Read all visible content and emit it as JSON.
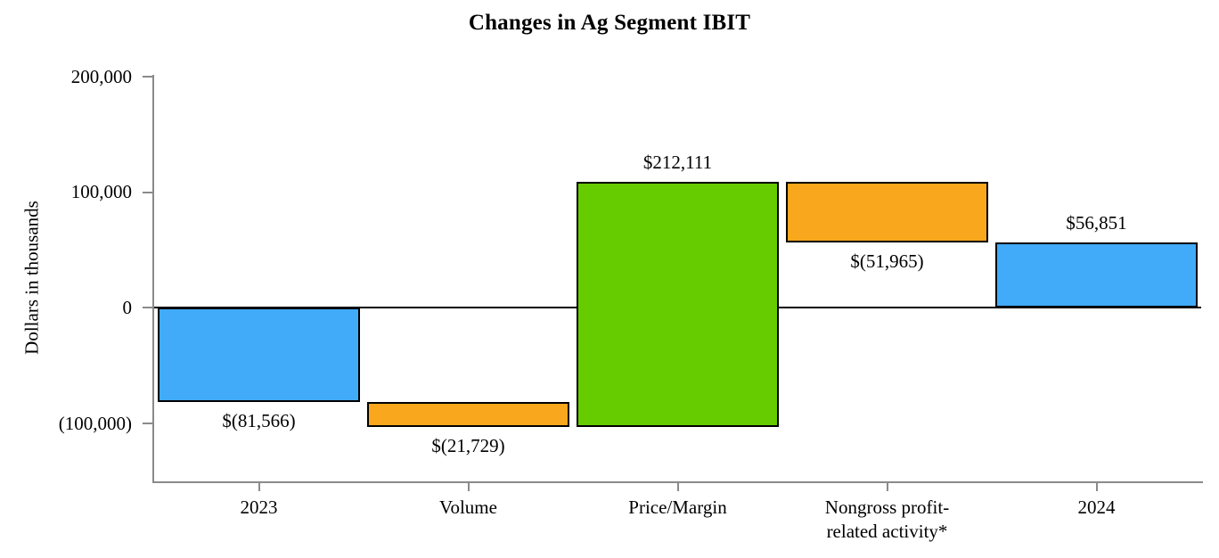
{
  "title": "Changes in Ag Segment IBIT",
  "chart_data": {
    "type": "bar",
    "subtype": "waterfall",
    "title": "Changes in Ag Segment IBIT",
    "xlabel": "",
    "ylabel": "Dollars in thousands",
    "units": "thousands of dollars",
    "ylim": [
      -150000,
      200000
    ],
    "grid": false,
    "legend": false,
    "yticks": [
      {
        "value": 200000,
        "label": "200,000"
      },
      {
        "value": 100000,
        "label": "100,000"
      },
      {
        "value": 0,
        "label": "0"
      },
      {
        "value": -100000,
        "label": "(100,000)"
      }
    ],
    "categories": [
      "2023",
      "Volume",
      "Price/Margin",
      "Nongross profit-\nrelated activity*",
      "2024"
    ],
    "palette": {
      "total": "#41ABF9",
      "negative_change": "#F9A71C",
      "positive_change": "#66CC00"
    },
    "axis_color": "#8a8a8a",
    "zero_line_color": "#000000",
    "bar_border_color": "#000000",
    "bars": [
      {
        "category": "2023",
        "value": -81566,
        "start": 0,
        "end": -81566,
        "label": "$(81,566)",
        "color_key": "total",
        "label_position": "below"
      },
      {
        "category": "Volume",
        "value": -21729,
        "start": -81566,
        "end": -103295,
        "label": "$(21,729)",
        "color_key": "negative_change",
        "label_position": "below"
      },
      {
        "category": "Price/Margin",
        "value": 212111,
        "start": -103295,
        "end": 108816,
        "label": "$212,111",
        "color_key": "positive_change",
        "label_position": "above"
      },
      {
        "category": "Nongross profit-\nrelated activity*",
        "value": -51965,
        "start": 108816,
        "end": 56851,
        "label": "$(51,965)",
        "color_key": "negative_change",
        "label_position": "below"
      },
      {
        "category": "2024",
        "value": 56851,
        "start": 0,
        "end": 56851,
        "label": "$56,851",
        "color_key": "total",
        "label_position": "above"
      }
    ]
  }
}
